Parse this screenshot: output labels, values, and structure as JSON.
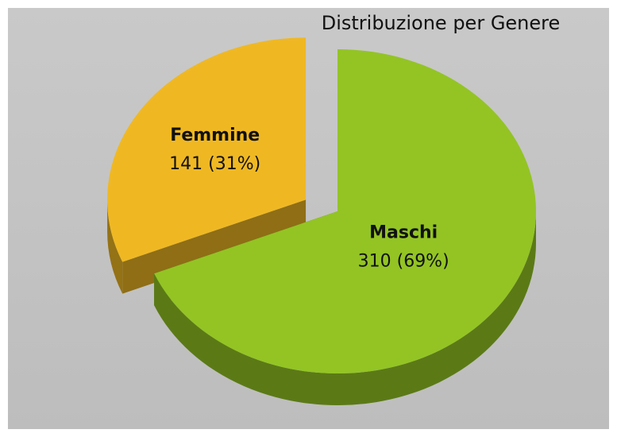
{
  "chart_data": {
    "type": "pie",
    "title": "Distribuzione per Genere",
    "categories": [
      "Maschi",
      "Femmine"
    ],
    "values": [
      310,
      141
    ],
    "value_labels": [
      "310 (69%)",
      "141 (31%)"
    ],
    "colors": [
      "#93c424",
      "#efb823"
    ]
  }
}
